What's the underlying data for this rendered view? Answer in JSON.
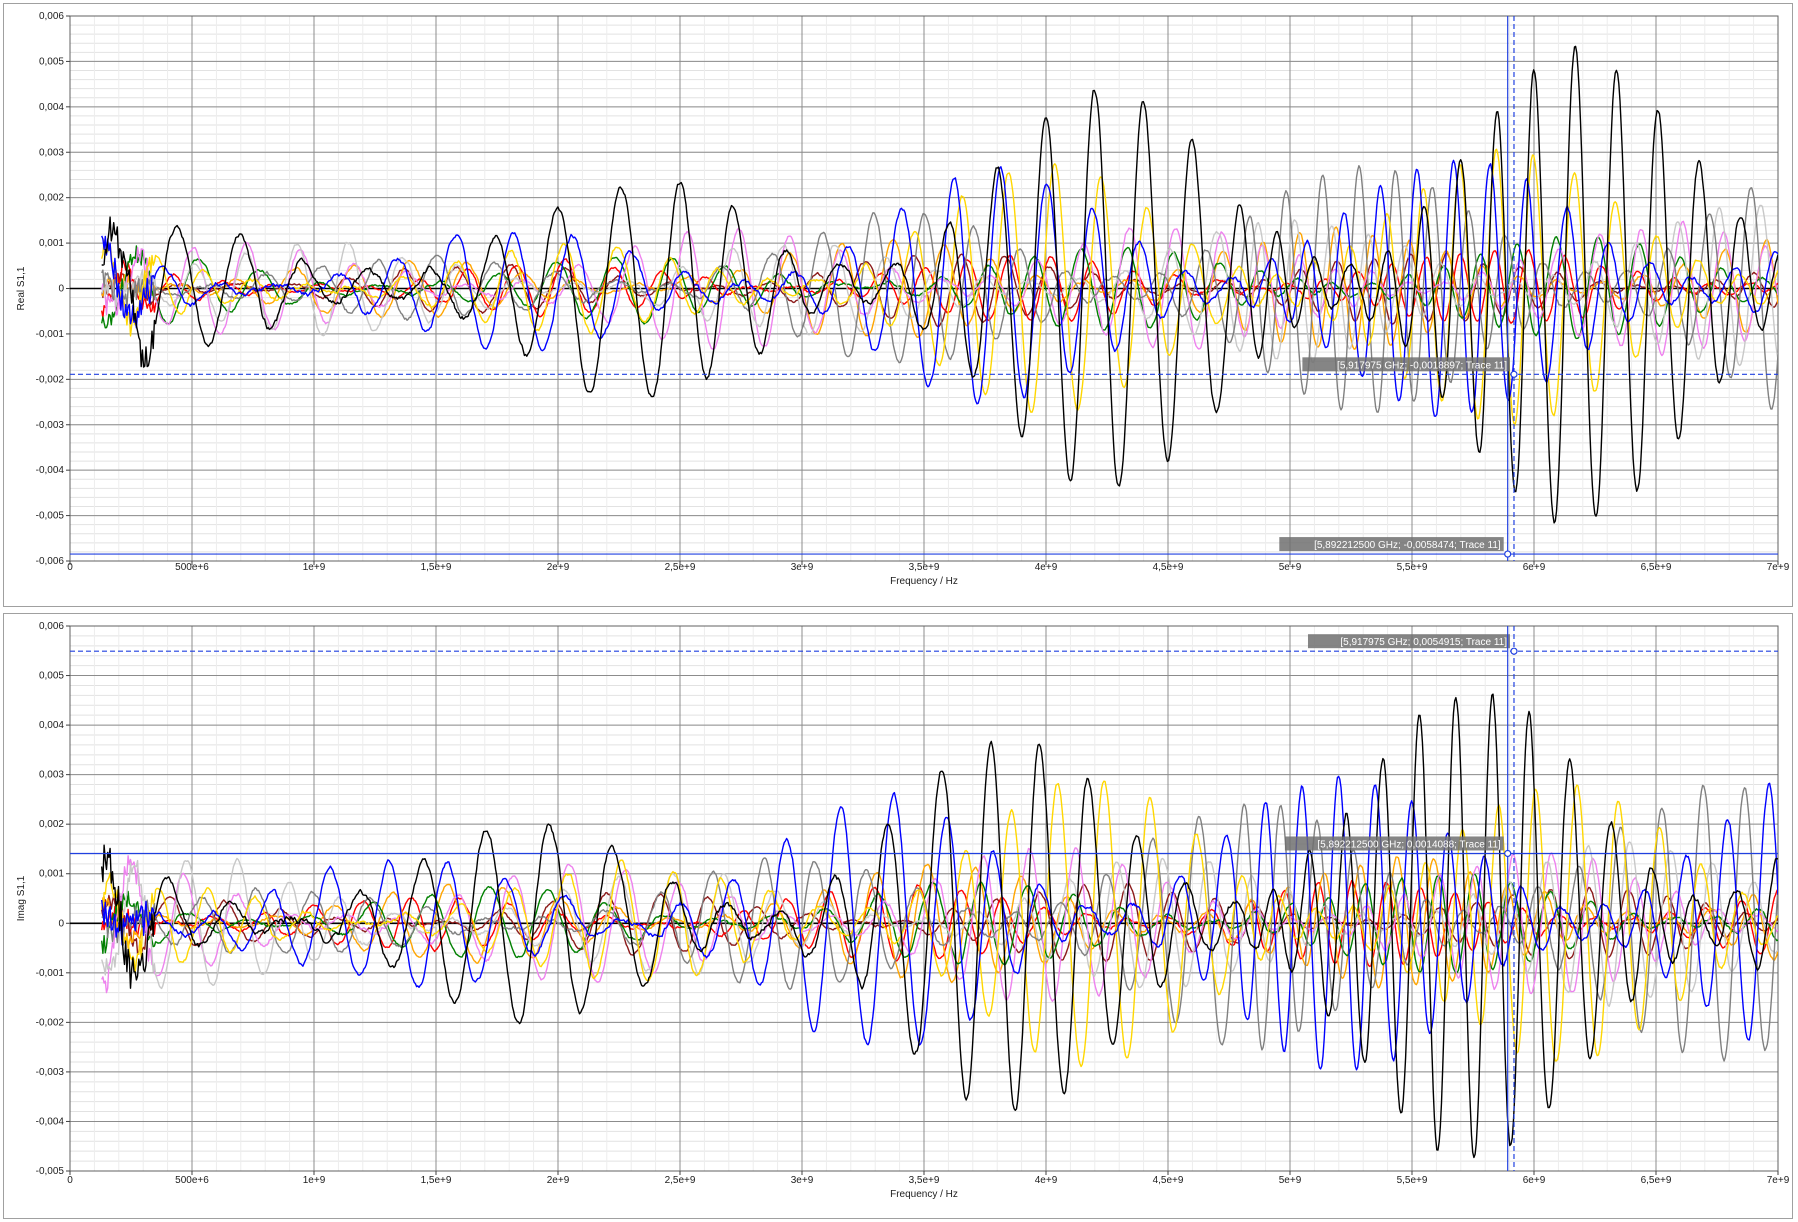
{
  "chart_data": [
    {
      "type": "line",
      "id": "real",
      "xlabel": "Frequency / Hz",
      "ylabel": "Real S1,1",
      "xlim": [
        0,
        7000000000
      ],
      "ylim": [
        -0.006,
        0.006
      ],
      "x_ticks": [
        "0",
        "500e+6",
        "1e+9",
        "1,5e+9",
        "2e+9",
        "2,5e+9",
        "3e+9",
        "3,5e+9",
        "4e+9",
        "4,5e+9",
        "5e+9",
        "5,5e+9",
        "6e+9",
        "6,5e+9",
        "7e+9"
      ],
      "y_ticks": [
        "0,006",
        "0,005",
        "0,004",
        "0,003",
        "0,002",
        "0,001",
        "0",
        "-0,001",
        "-0,002",
        "-0,003",
        "-0,004",
        "-0,005",
        "-0,006"
      ],
      "grid": true,
      "series": [
        {
          "color": "#000000",
          "amp": [
            0.0012,
            0.002,
            0.0024,
            0.004,
            0.0047,
            0.0052
          ],
          "period": [
            260,
            260,
            220,
            200,
            150,
            170
          ],
          "phase": 0.3,
          "noise": 0.0006
        },
        {
          "color": "#0000ff",
          "amp": [
            0.001,
            0.0012,
            0.0015,
            0.0025,
            0.003,
            0.0028
          ],
          "period": [
            240,
            240,
            220,
            190,
            150,
            170
          ],
          "phase": 1.2,
          "noise": 0.0005
        },
        {
          "color": "#ffd700",
          "amp": [
            0.0009,
            0.0008,
            0.001,
            0.0025,
            0.0032,
            0.003
          ],
          "period": [
            200,
            220,
            200,
            190,
            150,
            170
          ],
          "phase": 0.8,
          "noise": 0.0004
        },
        {
          "color": "#808080",
          "amp": [
            0.0008,
            0.0006,
            0.001,
            0.0018,
            0.0025,
            0.003
          ],
          "period": [
            230,
            240,
            210,
            190,
            150,
            170
          ],
          "phase": 2.0,
          "noise": 0.0004
        },
        {
          "color": "#c8c8c8",
          "amp": [
            0.0012,
            0.001,
            0.001,
            0.001,
            0.0015,
            0.0018
          ],
          "period": [
            210,
            230,
            210,
            190,
            150,
            170
          ],
          "phase": 2.6,
          "noise": 0.0004
        },
        {
          "color": "#ee82ee",
          "amp": [
            0.001,
            0.001,
            0.0012,
            0.0018,
            0.0012,
            0.0014
          ],
          "period": [
            220,
            230,
            210,
            190,
            150,
            170
          ],
          "phase": 3.3,
          "noise": 0.0004
        },
        {
          "color": "#008000",
          "amp": [
            0.0008,
            0.0006,
            0.0007,
            0.0008,
            0.001,
            0.0011
          ],
          "period": [
            250,
            240,
            220,
            190,
            150,
            170
          ],
          "phase": 4.0,
          "noise": 0.0003
        },
        {
          "color": "#ff0000",
          "amp": [
            0.0005,
            0.0005,
            0.0006,
            0.0007,
            0.0008,
            0.0008
          ],
          "period": [
            200,
            200,
            180,
            170,
            140,
            150
          ],
          "phase": 4.6,
          "noise": 0.0003
        },
        {
          "color": "#8b1a1a",
          "amp": [
            0.0005,
            0.0005,
            0.0006,
            0.0008,
            0.0008,
            0.0007
          ],
          "period": [
            230,
            220,
            200,
            180,
            150,
            160
          ],
          "phase": 5.2,
          "noise": 0.0003
        },
        {
          "color": "#ffa500",
          "amp": [
            0.0007,
            0.0006,
            0.0008,
            0.0012,
            0.0014,
            0.0012
          ],
          "period": [
            240,
            230,
            210,
            190,
            150,
            170
          ],
          "phase": 5.8,
          "noise": 0.0003
        }
      ],
      "x_start": 130000000,
      "markers": [
        {
          "x": 5892212500,
          "y": -0.0058474,
          "label": "[5,892212500 GHz; -0,0058474; Trace 11]",
          "style": "solid"
        },
        {
          "x": 5917975000,
          "y": -0.0018897,
          "label": "[5,917975 GHz; -0,0018897; Trace 11]",
          "style": "dashed"
        }
      ]
    },
    {
      "type": "line",
      "id": "imag",
      "xlabel": "Frequency / Hz",
      "ylabel": "Imag S1,1",
      "xlim": [
        0,
        7000000000
      ],
      "ylim": [
        -0.005,
        0.006
      ],
      "x_ticks": [
        "0",
        "500e+6",
        "1e+9",
        "1,5e+9",
        "2e+9",
        "2,5e+9",
        "3e+9",
        "3,5e+9",
        "4e+9",
        "4,5e+9",
        "5e+9",
        "5,5e+9",
        "6e+9",
        "6,5e+9",
        "7e+9"
      ],
      "y_ticks": [
        "0,006",
        "0,005",
        "0,004",
        "0,003",
        "0,002",
        "0,001",
        "0",
        "-0,001",
        "-0,002",
        "-0,003",
        "-0,004",
        "-0,005"
      ],
      "grid": true,
      "series": [
        {
          "color": "#000000",
          "amp": [
            0.0014,
            0.0018,
            0.0022,
            0.0036,
            0.0045,
            0.0048
          ],
          "period": [
            260,
            260,
            220,
            200,
            150,
            170
          ],
          "phase": 1.1,
          "noise": 0.0006
        },
        {
          "color": "#0000ff",
          "amp": [
            0.0012,
            0.0012,
            0.0018,
            0.0028,
            0.003,
            0.003
          ],
          "period": [
            240,
            240,
            220,
            190,
            150,
            170
          ],
          "phase": 2.1,
          "noise": 0.0005
        },
        {
          "color": "#ffd700",
          "amp": [
            0.0008,
            0.0009,
            0.0012,
            0.0028,
            0.003,
            0.0028
          ],
          "period": [
            200,
            220,
            200,
            190,
            150,
            170
          ],
          "phase": 0.4,
          "noise": 0.0004
        },
        {
          "color": "#808080",
          "amp": [
            0.0008,
            0.0006,
            0.001,
            0.0018,
            0.0025,
            0.0028
          ],
          "period": [
            230,
            240,
            210,
            190,
            150,
            170
          ],
          "phase": 2.9,
          "noise": 0.0004
        },
        {
          "color": "#c8c8c8",
          "amp": [
            0.0014,
            0.0012,
            0.001,
            0.001,
            0.0014,
            0.0016
          ],
          "period": [
            210,
            230,
            210,
            190,
            150,
            170
          ],
          "phase": 3.6,
          "noise": 0.0004
        },
        {
          "color": "#ee82ee",
          "amp": [
            0.0012,
            0.0012,
            0.0012,
            0.0018,
            0.0012,
            0.0014
          ],
          "period": [
            220,
            230,
            210,
            190,
            150,
            170
          ],
          "phase": 4.3,
          "noise": 0.0004
        },
        {
          "color": "#008000",
          "amp": [
            0.0008,
            0.0007,
            0.0007,
            0.0008,
            0.001,
            0.001
          ],
          "period": [
            250,
            240,
            220,
            190,
            150,
            170
          ],
          "phase": 5.0,
          "noise": 0.0003
        },
        {
          "color": "#ff0000",
          "amp": [
            0.0006,
            0.0005,
            0.0006,
            0.0008,
            0.0009,
            0.0008
          ],
          "period": [
            200,
            200,
            180,
            170,
            140,
            150
          ],
          "phase": 5.6,
          "noise": 0.0003
        },
        {
          "color": "#8b1a1a",
          "amp": [
            0.0005,
            0.0005,
            0.0006,
            0.0008,
            0.0008,
            0.0007
          ],
          "period": [
            230,
            220,
            200,
            180,
            150,
            160
          ],
          "phase": 0.2,
          "noise": 0.0003
        },
        {
          "color": "#ffa500",
          "amp": [
            0.0007,
            0.0007,
            0.0009,
            0.0012,
            0.0014,
            0.0012
          ],
          "period": [
            240,
            230,
            210,
            190,
            150,
            170
          ],
          "phase": 1.6,
          "noise": 0.0003
        }
      ],
      "x_start": 130000000,
      "markers": [
        {
          "x": 5917975000,
          "y": 0.0054915,
          "label": "[5,917975 GHz; 0,0054915; Trace 11]",
          "style": "dashed"
        },
        {
          "x": 5892212500,
          "y": 0.0014088,
          "label": "[5,892212500 GHz; 0,0014088; Trace 11]",
          "style": "solid"
        }
      ]
    }
  ]
}
